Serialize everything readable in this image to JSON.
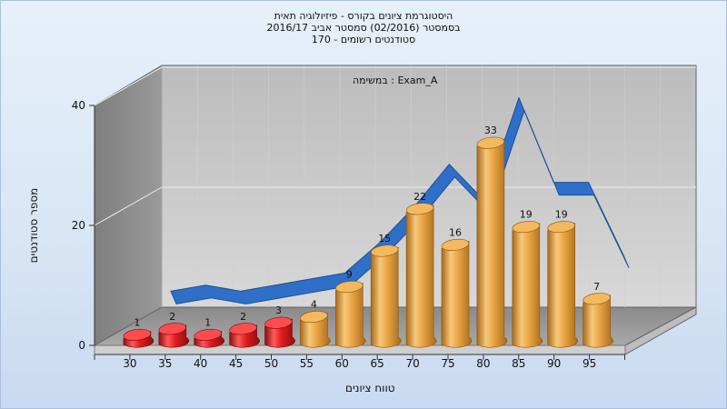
{
  "chart_data": {
    "type": "bar",
    "title_lines": [
      "היסטוגרמת ציונים בקורס - פיזיולוגיה תאית",
      "בסמסטר  (02/2016)  סמסטר אביב 2016/17",
      "סטודנטים רשומים - 170"
    ],
    "subtitle": "Exam_A : במשימה",
    "xlabel": "טווח ציונים",
    "ylabel": "מספר סטודנטים",
    "categories": [
      "30",
      "35",
      "40",
      "45",
      "50",
      "55",
      "60",
      "65",
      "70",
      "75",
      "80",
      "85",
      "90",
      "95"
    ],
    "values": [
      1,
      2,
      1,
      2,
      3,
      4,
      9,
      15,
      22,
      16,
      33,
      19,
      19,
      7
    ],
    "ylim": [
      0,
      40
    ],
    "yticks": [
      "0",
      "20",
      "40"
    ],
    "bar_colors": {
      "below_passing": "#e02020",
      "passing": "#e8a43c",
      "trend_line": "#2f6fc8"
    },
    "passing_threshold": 55,
    "trend_line": true,
    "grid": true
  }
}
